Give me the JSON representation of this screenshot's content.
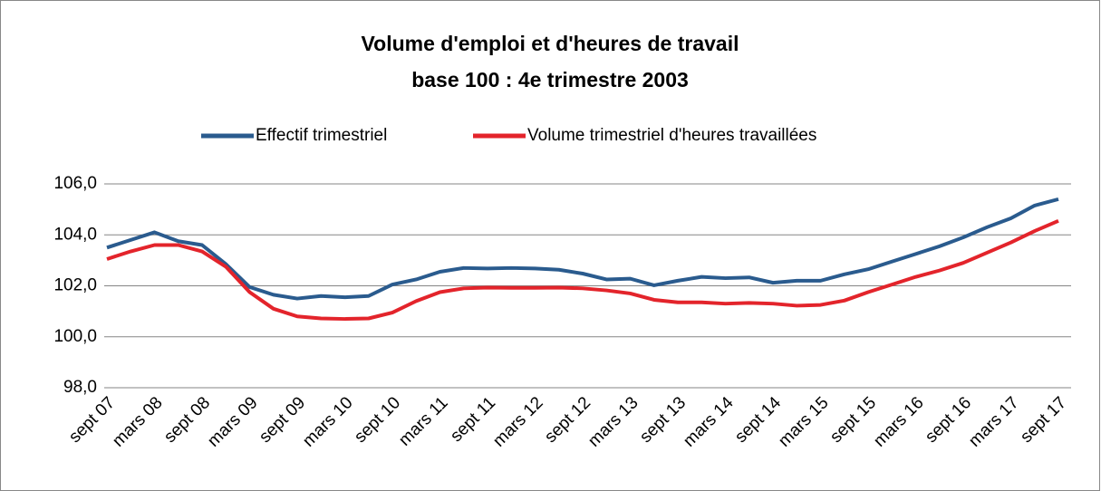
{
  "chart_data": {
    "type": "line",
    "title": "Volume d'emploi et  d'heures de travail",
    "subtitle": "base 100 : 4e trimestre 2003",
    "categories": [
      "sept 07",
      null,
      "mars 08",
      null,
      "sept 08",
      null,
      "mars 09",
      null,
      "sept 09",
      null,
      "mars 10",
      null,
      "sept 10",
      null,
      "mars 11",
      null,
      "sept 11",
      null,
      "mars 12",
      null,
      "sept 12",
      null,
      "mars 13",
      null,
      "sept 13",
      null,
      "mars 14",
      null,
      "sept 14",
      null,
      "mars 15",
      null,
      "sept 15",
      null,
      "mars 16",
      null,
      "sept 16",
      null,
      "mars 17",
      null,
      "sept 17"
    ],
    "series": [
      {
        "name": "Effectif trimestriel",
        "color": "#2a5b8e",
        "values": [
          103.5,
          103.8,
          104.1,
          103.75,
          103.6,
          102.85,
          101.95,
          101.65,
          101.5,
          101.6,
          101.55,
          101.6,
          102.05,
          102.25,
          102.55,
          102.7,
          102.68,
          102.7,
          102.68,
          102.63,
          102.48,
          102.25,
          102.28,
          102.02,
          102.2,
          102.35,
          102.3,
          102.33,
          102.12,
          102.2,
          102.2,
          102.45,
          102.65,
          102.95,
          103.25,
          103.55,
          103.9,
          104.3,
          104.65,
          105.15,
          105.4
        ]
      },
      {
        "name": "Volume trimestriel d'heures travaillées",
        "color": "#e3242b",
        "values": [
          103.05,
          103.35,
          103.6,
          103.6,
          103.35,
          102.75,
          101.75,
          101.1,
          100.8,
          100.72,
          100.7,
          100.72,
          100.95,
          101.4,
          101.75,
          101.9,
          101.93,
          101.92,
          101.92,
          101.93,
          101.9,
          101.82,
          101.7,
          101.45,
          101.35,
          101.35,
          101.3,
          101.33,
          101.3,
          101.22,
          101.25,
          101.42,
          101.75,
          102.05,
          102.35,
          102.6,
          102.9,
          103.3,
          103.7,
          104.15,
          104.55
        ]
      }
    ],
    "ylim": [
      98,
      106
    ],
    "yticks": [
      {
        "value": 98,
        "label": "98,0"
      },
      {
        "value": 100,
        "label": "100,0"
      },
      {
        "value": 102,
        "label": "102,0"
      },
      {
        "value": 104,
        "label": "104,0"
      },
      {
        "value": 106,
        "label": "106,0"
      }
    ],
    "grid": true,
    "legend": "top"
  }
}
